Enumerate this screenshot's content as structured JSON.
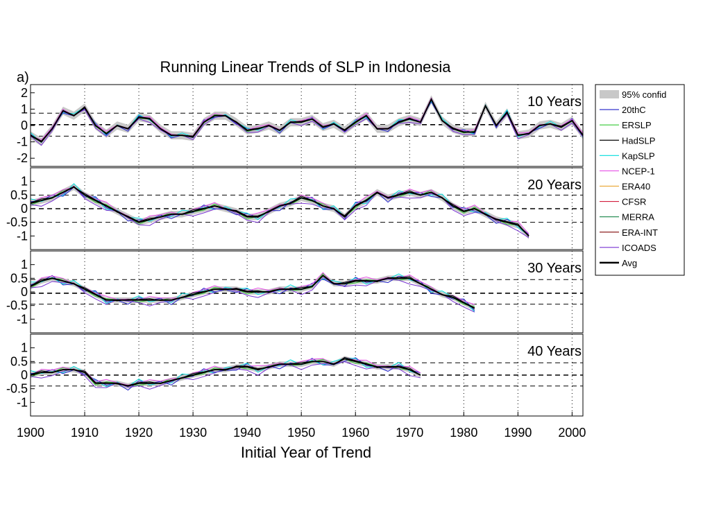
{
  "chart_data": {
    "type": "line",
    "title": "Running Linear Trends of SLP in Indonesia",
    "figure_label": "a)",
    "xlabel": "Initial Year of Trend",
    "xlim": [
      1900,
      2002
    ],
    "x_ticks": [
      1900,
      1910,
      1920,
      1930,
      1940,
      1950,
      1960,
      1970,
      1980,
      1990,
      2000
    ],
    "grid": "dotted vertical lines at each decade",
    "legend_position": "right",
    "colors": {
      "95% confid": "#c8c8c8",
      "20thC": "#1e1ec8",
      "ERSLP": "#32c832",
      "HadSLP": "#000000",
      "KapSLP": "#00dcdc",
      "NCEP-1": "#e650e6",
      "ERA40": "#ebaa3c",
      "CFSR": "#d21e3c",
      "MERRA": "#148246",
      "ERA-INT": "#8c1e1e",
      "ICOADS": "#7832d2",
      "Avg": "#000000"
    },
    "legend": [
      "95% confid",
      "20thC",
      "ERSLP",
      "HadSLP",
      "KapSLP",
      "NCEP-1",
      "ERA40",
      "CFSR",
      "MERRA",
      "ERA-INT",
      "ICOADS",
      "Avg"
    ],
    "panels": [
      {
        "label": "10 Years",
        "ylim": [
          -2.5,
          2.5
        ],
        "y_ticks": [
          -2,
          -1,
          0,
          1,
          2
        ],
        "ref_lines": [
          0.75,
          0.05,
          -0.65
        ],
        "x_end": 2002,
        "avg": {
          "x": [
            1900,
            1902,
            1904,
            1906,
            1908,
            1910,
            1912,
            1914,
            1916,
            1918,
            1920,
            1922,
            1924,
            1926,
            1928,
            1930,
            1932,
            1934,
            1936,
            1938,
            1940,
            1942,
            1944,
            1946,
            1948,
            1950,
            1952,
            1954,
            1956,
            1958,
            1960,
            1962,
            1964,
            1966,
            1968,
            1970,
            1972,
            1974,
            1976,
            1978,
            1980,
            1982,
            1984,
            1986,
            1988,
            1990,
            1992,
            1994,
            1996,
            1998,
            2000,
            2002
          ],
          "y": [
            -0.6,
            -1.0,
            -0.2,
            0.9,
            0.6,
            1.1,
            0.0,
            -0.5,
            0.0,
            -0.2,
            0.5,
            0.4,
            -0.2,
            -0.6,
            -0.6,
            -0.7,
            0.2,
            0.6,
            0.6,
            0.2,
            -0.3,
            -0.2,
            0.0,
            -0.3,
            0.2,
            0.2,
            0.4,
            -0.1,
            0.1,
            -0.3,
            0.2,
            0.6,
            -0.2,
            -0.2,
            0.2,
            0.4,
            0.2,
            1.6,
            0.3,
            -0.2,
            -0.4,
            -0.4,
            1.2,
            0.0,
            0.8,
            -0.6,
            -0.5,
            0.0,
            0.1,
            -0.1,
            0.3,
            -0.6
          ]
        },
        "ci_halfwidth": 0.25
      },
      {
        "label": "20 Years",
        "ylim": [
          -1.5,
          1.5
        ],
        "y_ticks": [
          -1,
          -0.5,
          0,
          0.5,
          1
        ],
        "ref_lines": [
          0.5,
          0.0,
          -0.5
        ],
        "x_end": 1992,
        "avg": {
          "x": [
            1900,
            1902,
            1904,
            1906,
            1908,
            1910,
            1912,
            1914,
            1916,
            1918,
            1920,
            1922,
            1924,
            1926,
            1928,
            1930,
            1932,
            1934,
            1936,
            1938,
            1940,
            1942,
            1944,
            1946,
            1948,
            1950,
            1952,
            1954,
            1956,
            1958,
            1960,
            1962,
            1964,
            1966,
            1968,
            1970,
            1972,
            1974,
            1976,
            1978,
            1980,
            1982,
            1984,
            1986,
            1988,
            1990,
            1992
          ],
          "y": [
            0.2,
            0.3,
            0.4,
            0.6,
            0.8,
            0.5,
            0.3,
            0.1,
            -0.1,
            -0.3,
            -0.5,
            -0.4,
            -0.3,
            -0.2,
            -0.2,
            -0.1,
            0.0,
            0.1,
            0.0,
            -0.1,
            -0.3,
            -0.3,
            -0.1,
            0.1,
            0.2,
            0.4,
            0.3,
            0.1,
            0.0,
            -0.3,
            0.1,
            0.3,
            0.6,
            0.4,
            0.5,
            0.6,
            0.5,
            0.6,
            0.4,
            0.1,
            -0.1,
            0.0,
            -0.2,
            -0.4,
            -0.5,
            -0.6,
            -1.0
          ]
        },
        "ci_halfwidth": 0.12
      },
      {
        "label": "30 Years",
        "ylim": [
          -1.5,
          1.5
        ],
        "y_ticks": [
          -1,
          -0.5,
          0,
          0.5,
          1
        ],
        "ref_lines": [
          0.45,
          -0.05,
          -0.45
        ],
        "x_end": 1982,
        "avg": {
          "x": [
            1900,
            1902,
            1904,
            1906,
            1908,
            1910,
            1912,
            1914,
            1916,
            1918,
            1920,
            1922,
            1924,
            1926,
            1928,
            1930,
            1932,
            1934,
            1936,
            1938,
            1940,
            1942,
            1944,
            1946,
            1948,
            1950,
            1952,
            1954,
            1956,
            1958,
            1960,
            1962,
            1964,
            1966,
            1968,
            1970,
            1972,
            1974,
            1976,
            1978,
            1980,
            1982
          ],
          "y": [
            0.2,
            0.4,
            0.5,
            0.4,
            0.3,
            0.1,
            -0.1,
            -0.3,
            -0.3,
            -0.3,
            -0.3,
            -0.3,
            -0.3,
            -0.3,
            -0.2,
            -0.1,
            0.0,
            0.1,
            0.1,
            0.1,
            0.0,
            0.0,
            0.0,
            0.1,
            0.1,
            0.1,
            0.2,
            0.6,
            0.3,
            0.3,
            0.4,
            0.4,
            0.4,
            0.5,
            0.5,
            0.5,
            0.3,
            0.1,
            -0.1,
            -0.2,
            -0.4,
            -0.6
          ]
        },
        "ci_halfwidth": 0.1
      },
      {
        "label": "40 Years",
        "ylim": [
          -1.5,
          1.5
        ],
        "y_ticks": [
          -1,
          -0.5,
          0,
          0.5,
          1
        ],
        "ref_lines": [
          0.45,
          0.0,
          -0.4
        ],
        "x_end": 1972,
        "avg": {
          "x": [
            1900,
            1902,
            1904,
            1906,
            1908,
            1910,
            1912,
            1914,
            1916,
            1918,
            1920,
            1922,
            1924,
            1926,
            1928,
            1930,
            1932,
            1934,
            1936,
            1938,
            1940,
            1942,
            1944,
            1946,
            1948,
            1950,
            1952,
            1954,
            1956,
            1958,
            1960,
            1962,
            1964,
            1966,
            1968,
            1970,
            1972
          ],
          "y": [
            0.0,
            0.1,
            0.1,
            0.2,
            0.2,
            0.1,
            -0.3,
            -0.3,
            -0.3,
            -0.4,
            -0.3,
            -0.3,
            -0.3,
            -0.2,
            -0.1,
            0.0,
            0.1,
            0.2,
            0.2,
            0.3,
            0.3,
            0.2,
            0.3,
            0.4,
            0.4,
            0.4,
            0.5,
            0.5,
            0.4,
            0.6,
            0.5,
            0.4,
            0.3,
            0.3,
            0.3,
            0.2,
            0.0
          ]
        },
        "ci_halfwidth": 0.1
      }
    ]
  }
}
